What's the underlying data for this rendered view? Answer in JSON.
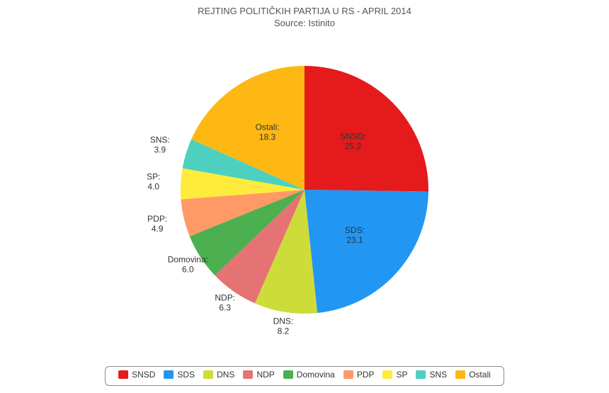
{
  "chart": {
    "type": "pie",
    "title_line1": "REJTING POLITIČKIH PARTIJA U RS - APRIL 2014",
    "title_line2": "Source: Istinito",
    "title_color": "#555555",
    "title_fontsize": 13,
    "background_color": "#ffffff",
    "start_angle_deg": -90,
    "radius": 175,
    "label_fontsize": 12,
    "label_color": "#333333",
    "legend_border_color": "#888888",
    "slices": [
      {
        "name": "SNSD",
        "value": 25.2,
        "color": "#e41a1c"
      },
      {
        "name": "SDS",
        "value": 23.1,
        "color": "#2196f3"
      },
      {
        "name": "DNS",
        "value": 8.2,
        "color": "#cddc39"
      },
      {
        "name": "NDP",
        "value": 6.3,
        "color": "#e57373"
      },
      {
        "name": "Domovina",
        "value": 6.0,
        "color": "#4caf50"
      },
      {
        "name": "PDP",
        "value": 4.9,
        "color": "#ff9966"
      },
      {
        "name": "SP",
        "value": 4.0,
        "color": "#ffeb3b"
      },
      {
        "name": "SNS",
        "value": 3.9,
        "color": "#4dd0c0"
      },
      {
        "name": "Ostali",
        "value": 18.3,
        "color": "#fdb813"
      }
    ]
  }
}
